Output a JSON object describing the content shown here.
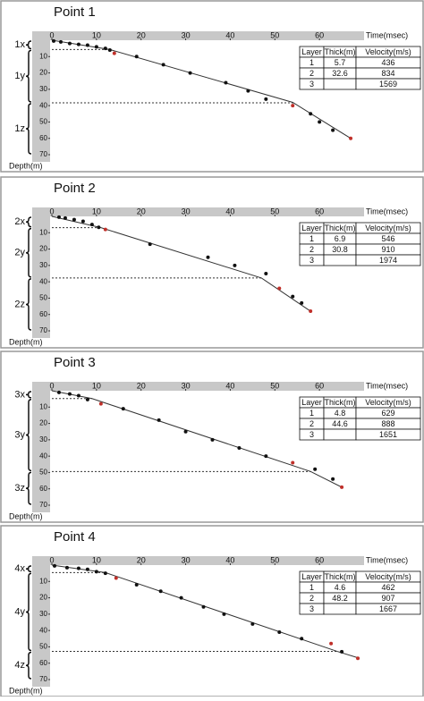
{
  "chart_data": [
    {
      "type": "scatter",
      "title": "Point 1",
      "x_label": "Time(msec)",
      "y_label": "Depth(m)",
      "xlim": [
        0,
        70
      ],
      "ylim": [
        0,
        70
      ],
      "xticks": [
        0,
        10,
        20,
        30,
        40,
        50,
        60
      ],
      "yticks": [
        10,
        20,
        30,
        40,
        50,
        60,
        70
      ],
      "series": [
        {
          "color": "#111111",
          "x": [
            0.4,
            2,
            4,
            6,
            8,
            10,
            12,
            13,
            19,
            25,
            31,
            39,
            44,
            48,
            58,
            60,
            63
          ],
          "y": [
            0.5,
            1,
            2,
            2.5,
            3,
            4,
            5,
            6,
            10,
            15,
            20,
            26,
            31,
            36,
            45,
            50,
            55
          ]
        },
        {
          "color": "#c0302a",
          "x": [
            14,
            54,
            67
          ],
          "y": [
            8,
            40,
            60
          ]
        }
      ],
      "fit": {
        "color": "#333333",
        "x": [
          0,
          13,
          54,
          67
        ],
        "y": [
          0,
          5.7,
          38,
          60
        ]
      },
      "layer_labels": [
        "1x",
        "1y",
        "1z"
      ],
      "table": {
        "columns": [
          "Layer",
          "Thick(m)",
          "Velocity(m/s)"
        ],
        "rows": [
          [
            1,
            5.7,
            436
          ],
          [
            2,
            32.6,
            834
          ],
          [
            3,
            null,
            1569
          ]
        ]
      }
    },
    {
      "type": "scatter",
      "title": "Point 2",
      "x_label": "Time(msec)",
      "y_label": "Depth(m)",
      "xlim": [
        0,
        70
      ],
      "ylim": [
        0,
        70
      ],
      "xticks": [
        0,
        10,
        20,
        30,
        40,
        50,
        60
      ],
      "yticks": [
        10,
        20,
        30,
        40,
        50,
        60,
        70
      ],
      "series": [
        {
          "color": "#111111",
          "x": [
            1.6,
            3,
            5,
            7,
            9,
            10.5,
            22,
            35,
            41,
            48,
            54,
            56
          ],
          "y": [
            0.5,
            1,
            2,
            3,
            5,
            6.7,
            17,
            25,
            30,
            35,
            49,
            53
          ]
        },
        {
          "color": "#c0302a",
          "x": [
            12,
            51,
            58
          ],
          "y": [
            8,
            44,
            58
          ]
        }
      ],
      "fit": {
        "color": "#333333",
        "x": [
          0,
          11,
          47,
          58
        ],
        "y": [
          0,
          6.9,
          37.7,
          58
        ]
      },
      "layer_labels": [
        "2x",
        "2y",
        "2z"
      ],
      "table": {
        "columns": [
          "Layer",
          "Thick(m)",
          "Velocity(m/s)"
        ],
        "rows": [
          [
            1,
            6.9,
            546
          ],
          [
            2,
            30.8,
            910
          ],
          [
            3,
            null,
            1974
          ]
        ]
      }
    },
    {
      "type": "scatter",
      "title": "Point 3",
      "x_label": "Time(msec)",
      "y_label": "Depth(m)",
      "xlim": [
        0,
        70
      ],
      "ylim": [
        0,
        70
      ],
      "xticks": [
        0,
        10,
        20,
        30,
        40,
        50,
        60
      ],
      "yticks": [
        10,
        20,
        30,
        40,
        50,
        60,
        70
      ],
      "series": [
        {
          "color": "#111111",
          "x": [
            1.6,
            4,
            6,
            8,
            16,
            24,
            30,
            36,
            42,
            48,
            59,
            63
          ],
          "y": [
            1,
            2,
            3,
            5.4,
            11,
            18,
            25,
            30,
            35,
            40,
            48,
            54
          ]
        },
        {
          "color": "#c0302a",
          "x": [
            11,
            54,
            65
          ],
          "y": [
            8,
            44,
            59
          ]
        }
      ],
      "fit": {
        "color": "#333333",
        "x": [
          0,
          9,
          58,
          65
        ],
        "y": [
          0,
          4.8,
          49.4,
          59
        ]
      },
      "layer_labels": [
        "3x",
        "3y",
        "3z"
      ],
      "table": {
        "columns": [
          "Layer",
          "Thick(m)",
          "Velocity(m/s)"
        ],
        "rows": [
          [
            1,
            4.8,
            629
          ],
          [
            2,
            44.6,
            888
          ],
          [
            3,
            null,
            1651
          ]
        ]
      }
    },
    {
      "type": "scatter",
      "title": "Point 4",
      "x_label": "Time(msec)",
      "y_label": "Depth(m)",
      "xlim": [
        0,
        70
      ],
      "ylim": [
        0,
        70
      ],
      "xticks": [
        0,
        10,
        20,
        30,
        40,
        50,
        60
      ],
      "yticks": [
        10,
        20,
        30,
        40,
        50,
        60,
        70
      ],
      "series": [
        {
          "color": "#111111",
          "x": [
            0.6,
            3.4,
            6,
            8,
            10,
            12,
            19,
            24.4,
            29,
            34,
            38.6,
            45,
            51,
            56,
            65
          ],
          "y": [
            0.5,
            1.6,
            2,
            2.6,
            4,
            5,
            12,
            16,
            20,
            25.6,
            30,
            36,
            41,
            45,
            53
          ]
        },
        {
          "color": "#c0302a",
          "x": [
            14.4,
            62.6,
            68.6
          ],
          "y": [
            7.9,
            48,
            57
          ]
        }
      ],
      "fit": {
        "color": "#333333",
        "x": [
          0,
          12,
          64,
          69
        ],
        "y": [
          0,
          4.6,
          52.8,
          57
        ]
      },
      "layer_labels": [
        "4x",
        "4y",
        "4z"
      ],
      "table": {
        "columns": [
          "Layer",
          "Thick(m)",
          "Velocity(m/s)"
        ],
        "rows": [
          [
            1,
            4.6,
            462
          ],
          [
            2,
            48.2,
            907
          ],
          [
            3,
            null,
            1667
          ]
        ]
      }
    }
  ]
}
